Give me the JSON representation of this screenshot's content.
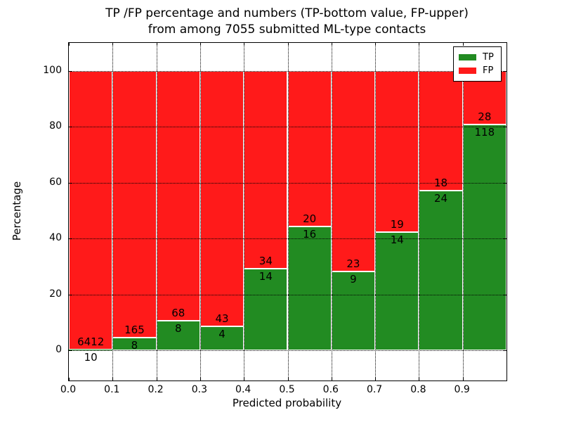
{
  "title": {
    "line1": "TP /FP percentage and numbers (TP-bottom value, FP-upper)",
    "line2": "from among 7055 submitted ML-type contacts"
  },
  "axes": {
    "xlabel": "Predicted probability",
    "ylabel": "Percentage",
    "x_tick_labels": [
      "0.0",
      "0.1",
      "0.2",
      "0.3",
      "0.4",
      "0.5",
      "0.6",
      "0.7",
      "0.8",
      "0.9"
    ],
    "y_tick_labels": [
      "0",
      "20",
      "40",
      "60",
      "80",
      "100"
    ]
  },
  "legend": {
    "entries": [
      {
        "label": "TP",
        "color": "#228b22"
      },
      {
        "label": "FP",
        "color": "#ff1a1a"
      }
    ]
  },
  "chart_data": {
    "type": "bar",
    "subtype": "stacked_percentage_histogram",
    "title": "TP /FP percentage and numbers (TP-bottom value, FP-upper) from among 7055 submitted ML-type contacts",
    "xlabel": "Predicted probability",
    "ylabel": "Percentage",
    "total_contacts": 7055,
    "bin_width": 0.1,
    "bin_starts": [
      0.0,
      0.1,
      0.2,
      0.3,
      0.4,
      0.5,
      0.6,
      0.7,
      0.8,
      0.9
    ],
    "xlim": [
      0.0,
      1.0
    ],
    "ylim": [
      -10.8,
      110.1
    ],
    "grid": true,
    "grid_style": "dotted",
    "grid_above_bars": true,
    "xticks": [
      0.0,
      0.1,
      0.2,
      0.3,
      0.4,
      0.5,
      0.6,
      0.7,
      0.8,
      0.9
    ],
    "yticks": [
      0,
      20,
      40,
      60,
      80,
      100
    ],
    "legend_position": "upper right",
    "bar_edge_color": "#ffffff",
    "series": [
      {
        "name": "TP",
        "color": "#228b22",
        "counts": [
          10,
          8,
          8,
          4,
          14,
          16,
          9,
          14,
          24,
          118
        ],
        "pct": [
          0.16,
          4.62,
          10.53,
          8.51,
          29.17,
          44.44,
          28.13,
          42.42,
          57.14,
          80.82
        ]
      },
      {
        "name": "FP",
        "color": "#ff1a1a",
        "counts": [
          6412,
          165,
          68,
          43,
          34,
          20,
          23,
          19,
          18,
          28
        ],
        "pct": [
          99.84,
          95.38,
          89.47,
          91.49,
          70.83,
          55.56,
          71.87,
          57.58,
          42.86,
          19.18
        ]
      }
    ]
  }
}
